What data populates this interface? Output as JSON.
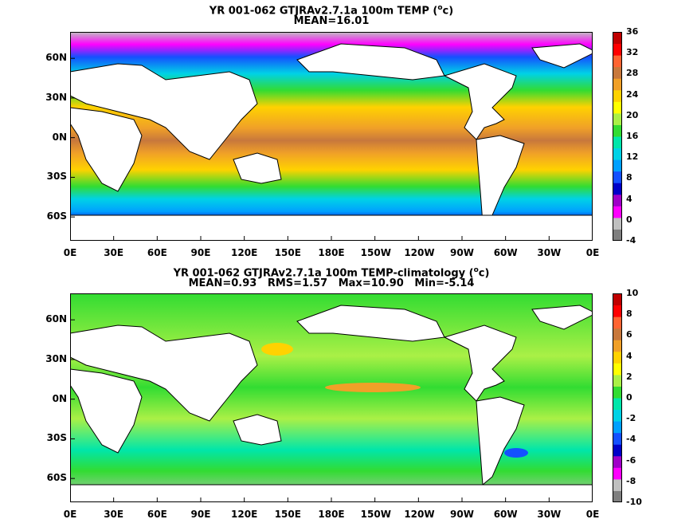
{
  "chart_data": [
    {
      "type": "heatmap",
      "title": "YR 001-062 GTJRAv2.7.1a 100m TEMP (°c)",
      "title_main": "YR 001-062 GTJRAv2.7.1a 100m TEMP (",
      "title_sup": "o",
      "title_end": "c)",
      "subtitle": "MEAN=16.01",
      "xticks": [
        "0E",
        "30E",
        "60E",
        "90E",
        "120E",
        "150E",
        "180E",
        "150W",
        "120W",
        "90W",
        "60W",
        "30W",
        "0E"
      ],
      "yticks": [
        "60N",
        "30N",
        "0N",
        "30S",
        "60S"
      ],
      "colorbar": {
        "min": -4,
        "max": 36,
        "ticks": [
          "36",
          "32",
          "28",
          "24",
          "20",
          "16",
          "12",
          "8",
          "4",
          "0",
          "-4"
        ],
        "colors": [
          "#7f7f7f",
          "#c0c0c0",
          "#ff00ff",
          "#a000c8",
          "#0000c8",
          "#1450ff",
          "#00a0ff",
          "#00d2e6",
          "#00e6aa",
          "#32dc32",
          "#aaf046",
          "#ffff00",
          "#ffd200",
          "#f0a028",
          "#c8783c",
          "#ff6432",
          "#ff0000",
          "#c00000"
        ]
      }
    },
    {
      "type": "heatmap",
      "title": "YR 001-062 GTJRAv2.7.1a 100m TEMP-climatology (°c)",
      "title_main": "YR 001-062 GTJRAv2.7.1a 100m TEMP-climatology (",
      "title_sup": "o",
      "title_end": "c)",
      "subtitle": "MEAN=0.93   RMS=1.57   Max=10.90   Min=-5.14",
      "xticks": [
        "0E",
        "30E",
        "60E",
        "90E",
        "120E",
        "150E",
        "180E",
        "150W",
        "120W",
        "90W",
        "60W",
        "30W",
        "0E"
      ],
      "yticks": [
        "60N",
        "30N",
        "0N",
        "30S",
        "60S"
      ],
      "colorbar": {
        "min": -10,
        "max": 10,
        "ticks": [
          "10",
          "8",
          "6",
          "4",
          "2",
          "0",
          "-2",
          "-4",
          "-6",
          "-8",
          "-10"
        ],
        "colors": [
          "#7f7f7f",
          "#c0c0c0",
          "#ff00ff",
          "#a000c8",
          "#0000c8",
          "#1450ff",
          "#00a0ff",
          "#00d2e6",
          "#00e6aa",
          "#32dc32",
          "#aaf046",
          "#ffff00",
          "#ffd200",
          "#f0a028",
          "#c8783c",
          "#ff6432",
          "#ff0000",
          "#c00000"
        ]
      }
    }
  ]
}
